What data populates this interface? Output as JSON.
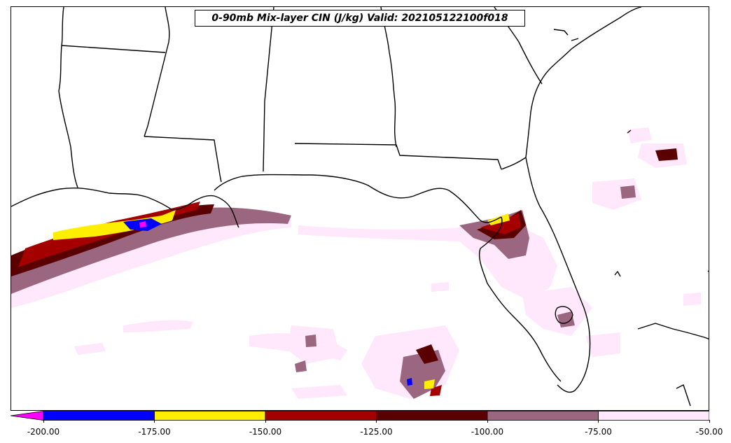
{
  "title": "0-90mb Mix-layer CIN (J/kg) Valid: 202105122100f018",
  "colorbar": {
    "extend_color": "#ff00ff",
    "bins": [
      {
        "from": -200,
        "to": -175,
        "color": "#0000ff"
      },
      {
        "from": -175,
        "to": -150,
        "color": "#ffee00"
      },
      {
        "from": -150,
        "to": -125,
        "color": "#a50000"
      },
      {
        "from": -125,
        "to": -100,
        "color": "#5a0000"
      },
      {
        "from": -100,
        "to": -75,
        "color": "#9b6680"
      },
      {
        "from": -75,
        "to": -50,
        "color": "#ffe8fb"
      }
    ],
    "ticks": [
      "-200.00",
      "-175.00",
      "-150.00",
      "-125.00",
      "-100.00",
      "-75.00",
      "-50.00"
    ]
  }
}
